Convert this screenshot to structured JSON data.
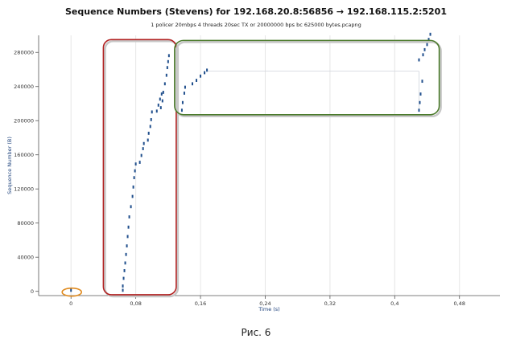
{
  "chart_data": {
    "type": "scatter",
    "title": "Sequence Numbers (Stevens) for 192.168.20.8:56856 → 192.168.115.2:5201",
    "subtitle": "1 policer 20mbps 4 threads 20sec TX or 20000000 bps bc 625000 bytes.pcapng",
    "xlabel": "Time (s)",
    "ylabel": "Sequence Number (B)",
    "xlim": [
      -0.04,
      0.53
    ],
    "ylim": [
      -5000,
      300000
    ],
    "x_ticks": [
      0,
      0.08,
      0.16,
      0.24,
      0.32,
      0.4,
      0.48
    ],
    "x_tick_labels": [
      "0",
      "0,08",
      "0,16",
      "0,24",
      "0,32",
      "0,4",
      "0,48"
    ],
    "y_ticks": [
      0,
      40000,
      80000,
      120000,
      160000,
      200000,
      240000,
      280000
    ],
    "y_tick_labels": [
      "0",
      "40000",
      "80000",
      "120000",
      "160000",
      "200000",
      "240000",
      "280000"
    ],
    "grid": "vertical",
    "colors": {
      "series": "#1f4e8c",
      "red_box": "#b22222",
      "green_box": "#4a7a2a",
      "orange_ellipse": "#e08a1e",
      "retrans_line": "#cfd4dc"
    },
    "series": [
      {
        "values_xy": [
          [
            0.0,
            0
          ],
          [
            0.064,
            0
          ],
          [
            0.064,
            5000
          ],
          [
            0.065,
            14000
          ],
          [
            0.066,
            23000
          ],
          [
            0.067,
            32000
          ],
          [
            0.068,
            42000
          ],
          [
            0.069,
            52000
          ],
          [
            0.07,
            63000
          ],
          [
            0.071,
            74000
          ],
          [
            0.072,
            86000
          ],
          [
            0.074,
            98000
          ],
          [
            0.076,
            110000
          ],
          [
            0.077,
            121000
          ],
          [
            0.078,
            132000
          ],
          [
            0.079,
            140000
          ],
          [
            0.08,
            148000
          ],
          [
            0.085,
            150000
          ],
          [
            0.087,
            158000
          ],
          [
            0.089,
            166000
          ],
          [
            0.09,
            172000
          ],
          [
            0.095,
            176000
          ],
          [
            0.096,
            184000
          ],
          [
            0.098,
            192000
          ],
          [
            0.099,
            200000
          ],
          [
            0.1,
            209000
          ],
          [
            0.106,
            210000
          ],
          [
            0.108,
            217000
          ],
          [
            0.11,
            224000
          ],
          [
            0.112,
            230000
          ],
          [
            0.111,
            214000
          ],
          [
            0.113,
            222000
          ],
          [
            0.114,
            232000
          ],
          [
            0.116,
            242000
          ],
          [
            0.118,
            252000
          ],
          [
            0.119,
            261000
          ],
          [
            0.12,
            268000
          ],
          [
            0.121,
            275000
          ],
          [
            0.137,
            211000
          ],
          [
            0.138,
            220000
          ],
          [
            0.14,
            231000
          ],
          [
            0.141,
            238000
          ],
          [
            0.15,
            242000
          ],
          [
            0.155,
            246000
          ],
          [
            0.16,
            251000
          ],
          [
            0.165,
            255000
          ],
          [
            0.168,
            258000
          ],
          [
            0.43,
            211000
          ],
          [
            0.431,
            220000
          ],
          [
            0.432,
            230000
          ],
          [
            0.434,
            245000
          ],
          [
            0.43,
            270000
          ],
          [
            0.435,
            276000
          ],
          [
            0.437,
            282000
          ],
          [
            0.44,
            288000
          ],
          [
            0.442,
            294000
          ],
          [
            0.444,
            300000
          ]
        ]
      }
    ]
  },
  "figure_caption": "Рис. 6"
}
